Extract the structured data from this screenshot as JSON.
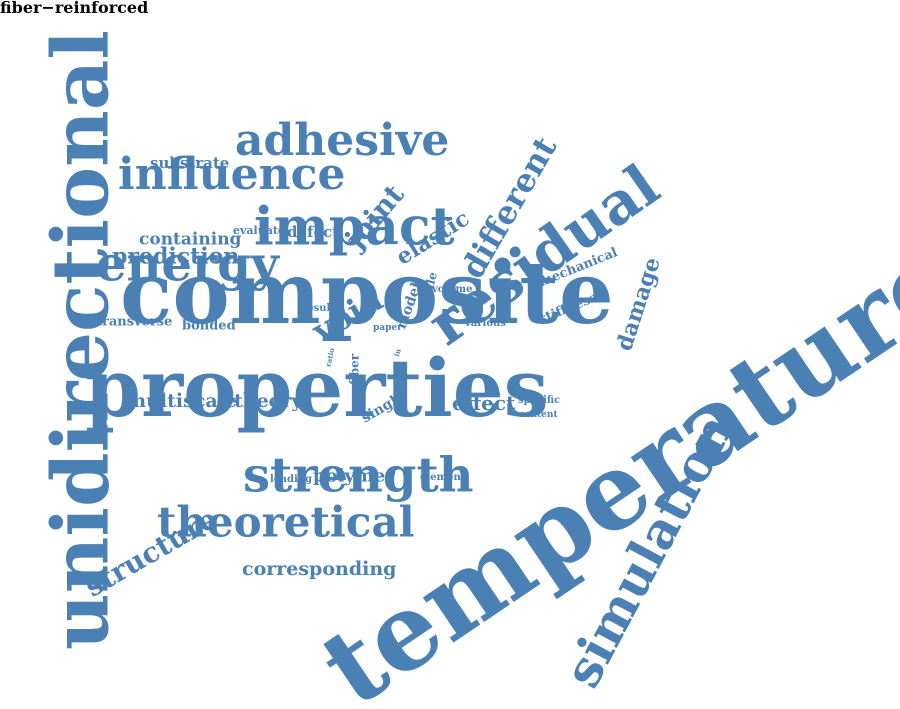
{
  "colors": {
    "word": "#4a80b4",
    "background": "#ffffff"
  },
  "words": [
    {
      "text": "composite",
      "key": "composite"
    },
    {
      "text": "temperature",
      "key": "temperature"
    },
    {
      "text": "properties",
      "key": "properties"
    },
    {
      "text": "unidirectional",
      "key": "unidirectional"
    },
    {
      "text": "residual",
      "key": "residual"
    },
    {
      "text": "impact",
      "key": "impact"
    },
    {
      "text": "energy",
      "key": "energy"
    },
    {
      "text": "strength",
      "key": "strength"
    },
    {
      "text": "simulation",
      "key": "simulation"
    },
    {
      "text": "influence",
      "key": "influence"
    },
    {
      "text": "adhesive",
      "key": "adhesive"
    },
    {
      "text": "theoretical",
      "key": "theoretical"
    },
    {
      "text": "fiber−reinforced",
      "key": "fiber-reinforced"
    },
    {
      "text": "different",
      "key": "different"
    },
    {
      "text": "structure",
      "key": "structure"
    },
    {
      "text": "void",
      "key": "void"
    },
    {
      "text": "damage",
      "key": "damage"
    },
    {
      "text": "joint",
      "key": "joint"
    },
    {
      "text": "elastic",
      "key": "elastic"
    },
    {
      "text": "prediction",
      "key": "prediction"
    },
    {
      "text": "containing",
      "key": "containing"
    },
    {
      "text": "corresponding",
      "key": "corresponding"
    },
    {
      "text": "multiscale",
      "key": "multiscale"
    },
    {
      "text": "theory",
      "key": "theory"
    },
    {
      "text": "effect",
      "key": "effect"
    },
    {
      "text": "polymer",
      "key": "polymer"
    },
    {
      "text": "substrate",
      "key": "substrate"
    },
    {
      "text": "defect",
      "key": "defect"
    },
    {
      "text": "transverse",
      "key": "transverse"
    },
    {
      "text": "bonded",
      "key": "bonded"
    },
    {
      "text": "mechanical",
      "key": "mechanical"
    },
    {
      "text": "stiffness",
      "key": "stiffness"
    },
    {
      "text": "single",
      "key": "single"
    },
    {
      "text": "evaluate",
      "key": "evaluate"
    },
    {
      "text": "model",
      "key": "model"
    },
    {
      "text": "tensile",
      "key": "tensile"
    },
    {
      "text": "volume",
      "key": "volume"
    },
    {
      "text": "result",
      "key": "result"
    },
    {
      "text": "various",
      "key": "various"
    },
    {
      "text": "paper",
      "key": "paper"
    },
    {
      "text": "fiber",
      "key": "fiber"
    },
    {
      "text": "ratio",
      "key": "ratio"
    },
    {
      "text": "loading",
      "key": "loading"
    },
    {
      "text": "element",
      "key": "element"
    },
    {
      "text": "specific",
      "key": "specific"
    },
    {
      "text": "content",
      "key": "content"
    },
    {
      "text": "in",
      "key": "in"
    }
  ]
}
